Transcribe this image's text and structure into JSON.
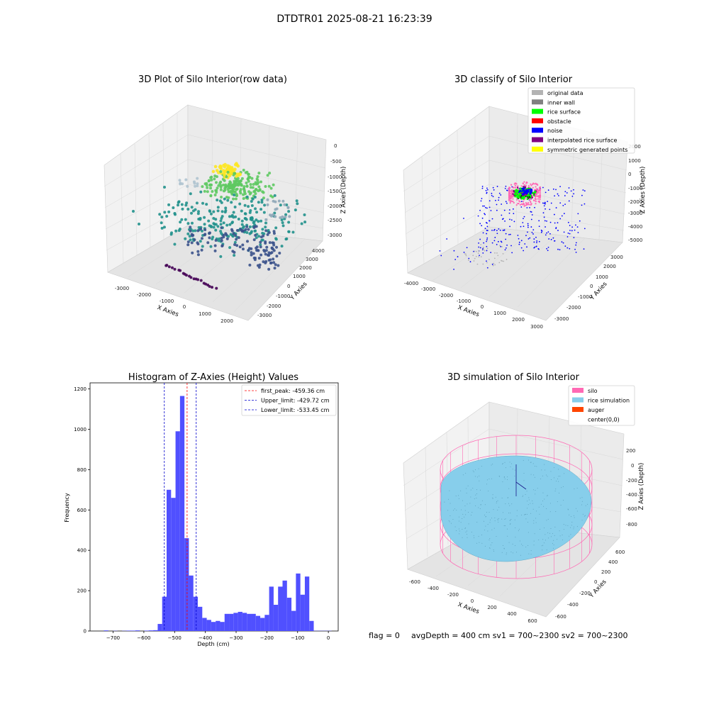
{
  "figure": {
    "suptitle": "DTDTR01 2025-08-21 16:23:39",
    "footer": {
      "flag": "flag = 0",
      "avg": "avgDepth = 400 cm  sv1 = 700~2300  sv2 = 700~2300"
    }
  },
  "chart_data": [
    {
      "id": "raw",
      "type": "scatter",
      "title": "3D Plot of Silo Interior(row data)",
      "xlabel": "X Axies",
      "ylabel": "Y Axies",
      "zlabel": "Z Axies (Depth)",
      "x_ticks": [
        "-3000",
        "-2000",
        "-1000",
        "0",
        "1000",
        "2000"
      ],
      "y_ticks": [
        "-3000",
        "-2000",
        "-1000",
        "0",
        "1000",
        "2000",
        "3000",
        "4000"
      ],
      "z_ticks": [
        "0",
        "-500",
        "-1000",
        "-1500",
        "-2000",
        "-2500",
        "-3000"
      ],
      "colormap": [
        "#440154",
        "#3b528b",
        "#21918c",
        "#5ec962",
        "#fde725"
      ]
    },
    {
      "id": "classify",
      "type": "scatter",
      "title": "3D classify of Silo Interior",
      "xlabel": "X Axies",
      "ylabel": "Y Axies",
      "zlabel": "Z Axies (Depth)",
      "x_ticks": [
        "-4000",
        "-3000",
        "-2000",
        "-1000",
        "0",
        "1000",
        "2000",
        "3000"
      ],
      "y_ticks": [
        "-3000",
        "-2000",
        "-1000",
        "0",
        "1000",
        "2000",
        "3000"
      ],
      "z_ticks": [
        "2000",
        "1000",
        "0",
        "-1000",
        "-2000",
        "-3000",
        "-4000",
        "-5000"
      ],
      "legend_position": "top-right",
      "legend": [
        {
          "label": "original data",
          "color": "#b3b3b3"
        },
        {
          "label": "inner wall",
          "color": "#808080"
        },
        {
          "label": "rice surface",
          "color": "#00ff00"
        },
        {
          "label": "obstacle",
          "color": "#ff0000"
        },
        {
          "label": "noise",
          "color": "#0000ff"
        },
        {
          "label": "interpolated rice surface",
          "color": "#800080"
        },
        {
          "label": "symmetric generated points",
          "color": "#ffff00"
        }
      ]
    },
    {
      "id": "hist",
      "type": "bar",
      "title": "Histogram of Z-Axies (Height) Values",
      "xlabel": "Depth (cm)",
      "ylabel": "Frequency",
      "xlim": [
        -775,
        32
      ],
      "ylim": [
        0,
        1230
      ],
      "x_ticks": [
        -700,
        -600,
        -500,
        -400,
        -300,
        -200,
        -100,
        0
      ],
      "y_ticks": [
        0,
        200,
        400,
        600,
        800,
        1000,
        1200
      ],
      "bin_width": 14.5,
      "bin_starts": [
        -730,
        -700,
        -671,
        -656.5,
        -642,
        -627.5,
        -598.5,
        -584,
        -569.5,
        -555,
        -540.5,
        -526,
        -511.5,
        -497,
        -482.5,
        -468,
        -453.5,
        -439,
        -424.5,
        -410,
        -395.5,
        -381,
        -366.5,
        -352,
        -337.5,
        -323,
        -308.5,
        -294,
        -279.5,
        -265,
        -250.5,
        -236,
        -221.5,
        -207,
        -192.5,
        -178,
        -163.5,
        -149,
        -134.5,
        -120,
        -105.5,
        -91,
        -76.5,
        -62,
        -47.5,
        -33,
        -18.5,
        -4
      ],
      "values": [
        3,
        1,
        1,
        2,
        2,
        3,
        2,
        3,
        4,
        35,
        170,
        700,
        660,
        990,
        1165,
        460,
        275,
        170,
        120,
        65,
        55,
        45,
        50,
        45,
        85,
        85,
        90,
        95,
        90,
        85,
        85,
        75,
        65,
        80,
        220,
        130,
        220,
        250,
        165,
        100,
        285,
        180,
        270,
        50,
        1,
        1,
        1,
        1
      ],
      "bar_color": "#5050ff",
      "vlines": [
        {
          "label": "first_peak: -459.36 cm",
          "x": -459.36,
          "color": "#ff0000"
        },
        {
          "label": "Upper_limit: -429.72 cm",
          "x": -429.72,
          "color": "#0000cc"
        },
        {
          "label": "Lower_limit: -533.45 cm",
          "x": -533.45,
          "color": "#0000cc"
        }
      ],
      "legend_position": "top-right"
    },
    {
      "id": "sim",
      "type": "scatter",
      "title": "3D simulation of Silo Interior",
      "xlabel": "X Axies",
      "ylabel": "Y Axies",
      "zlabel": "Z Axies (Depth)",
      "x_ticks": [
        "-600",
        "-400",
        "-200",
        "0",
        "200",
        "400",
        "600"
      ],
      "y_ticks": [
        "-600",
        "-400",
        "-200",
        "0",
        "200",
        "400",
        "600"
      ],
      "z_ticks": [
        "200",
        "0",
        "-200",
        "-400",
        "-600",
        "-800"
      ],
      "legend_position": "top-right",
      "legend": [
        {
          "label": "silo",
          "color": "#ff69b4"
        },
        {
          "label": "rice simulation",
          "color": "#87ceeb"
        },
        {
          "label": "auger",
          "color": "#ff4500"
        },
        {
          "label": "center(0,0)",
          "color": "#ffffff"
        }
      ]
    }
  ]
}
